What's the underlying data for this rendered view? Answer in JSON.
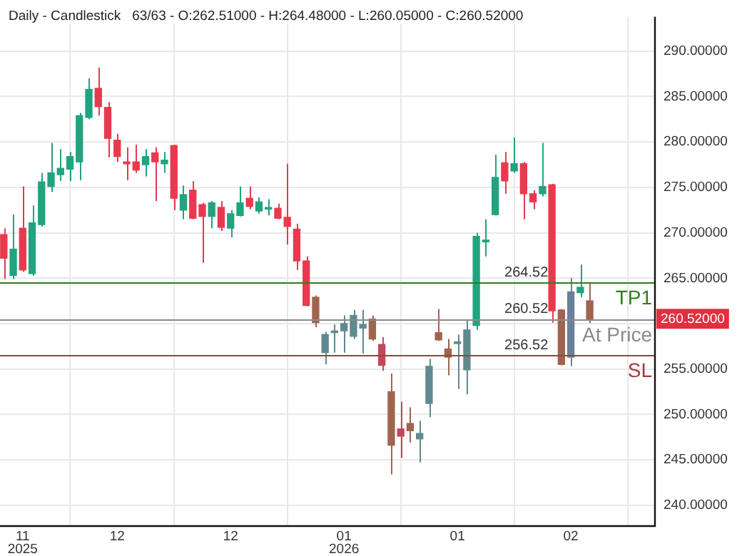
{
  "chart_data": {
    "type": "candlestick",
    "title": "Daily - Candlestick   63/63 - O:262.51000 - H:264.48000 - L:260.05000 - C:260.52000",
    "categories": [
      null,
      null,
      "11 2025",
      null,
      null,
      null,
      null,
      null,
      null,
      null,
      null,
      null,
      "12",
      null,
      null,
      null,
      null,
      null,
      null,
      null,
      null,
      null,
      null,
      null,
      "12",
      null,
      null,
      null,
      null,
      null,
      null,
      null,
      null,
      null,
      null,
      null,
      "01 2026",
      null,
      null,
      null,
      null,
      null,
      null,
      null,
      null,
      null,
      null,
      null,
      "01",
      null,
      null,
      null,
      null,
      null,
      null,
      null,
      null,
      null,
      null,
      null,
      "02",
      null,
      null
    ],
    "ohlc": [
      [
        269.8,
        270.5,
        264.9,
        267.2
      ],
      [
        265.3,
        272.0,
        264.9,
        268.2
      ],
      [
        270.5,
        275.1,
        265.7,
        265.9
      ],
      [
        265.5,
        273.0,
        265.3,
        271.1
      ],
      [
        270.9,
        276.6,
        270.7,
        275.6
      ],
      [
        275.1,
        279.9,
        274.5,
        276.6
      ],
      [
        276.4,
        279.2,
        275.7,
        277.1
      ],
      [
        277.0,
        278.9,
        275.7,
        278.4
      ],
      [
        277.8,
        283.2,
        275.8,
        282.9
      ],
      [
        282.7,
        287.0,
        282.5,
        285.8
      ],
      [
        285.9,
        288.2,
        282.9,
        283.9
      ],
      [
        283.8,
        284.4,
        278.3,
        280.4
      ],
      [
        280.2,
        280.9,
        277.8,
        278.4
      ],
      [
        277.8,
        279.4,
        275.8,
        277.6
      ],
      [
        277.8,
        279.7,
        276.6,
        276.9
      ],
      [
        277.5,
        279.2,
        276.2,
        278.4
      ],
      [
        278.8,
        279.4,
        273.5,
        277.8
      ],
      [
        277.6,
        278.9,
        276.6,
        278.0
      ],
      [
        279.6,
        279.7,
        272.5,
        273.8
      ],
      [
        272.5,
        275.2,
        271.5,
        274.2
      ],
      [
        274.7,
        275.7,
        271.5,
        271.6
      ],
      [
        273.1,
        273.3,
        266.7,
        271.8
      ],
      [
        271.8,
        273.5,
        270.5,
        273.3
      ],
      [
        272.8,
        273.5,
        270.2,
        270.6
      ],
      [
        270.5,
        272.5,
        269.5,
        272.1
      ],
      [
        271.9,
        275.1,
        271.8,
        273.3
      ],
      [
        273.8,
        275.1,
        272.6,
        272.9
      ],
      [
        272.4,
        273.9,
        272.1,
        273.4
      ],
      [
        272.6,
        273.7,
        271.9,
        272.7
      ],
      [
        272.7,
        273.2,
        271.5,
        271.6
      ],
      [
        271.7,
        277.6,
        268.7,
        270.7
      ],
      [
        270.4,
        271.0,
        265.9,
        266.9
      ],
      [
        266.9,
        267.4,
        261.9,
        262.0
      ],
      [
        262.9,
        263.1,
        259.6,
        260.1
      ],
      [
        256.8,
        259.1,
        255.5,
        258.8
      ],
      [
        259.0,
        259.9,
        256.8,
        259.1
      ],
      [
        259.2,
        260.9,
        256.8,
        260.0
      ],
      [
        258.6,
        261.5,
        258.3,
        260.9
      ],
      [
        259.5,
        261.5,
        256.7,
        259.9
      ],
      [
        260.5,
        260.9,
        258.1,
        258.3
      ],
      [
        257.7,
        258.5,
        254.8,
        255.4
      ],
      [
        252.5,
        254.5,
        243.4,
        246.6
      ],
      [
        248.4,
        251.4,
        245.2,
        247.6
      ],
      [
        249.0,
        250.8,
        246.9,
        248.2
      ],
      [
        247.3,
        249.3,
        244.7,
        247.9
      ],
      [
        251.2,
        256.1,
        249.7,
        255.3
      ],
      [
        259.0,
        261.6,
        258.1,
        258.2
      ],
      [
        257.2,
        258.3,
        254.3,
        256.3
      ],
      [
        257.8,
        258.8,
        252.8,
        257.9
      ],
      [
        254.9,
        260.4,
        252.2,
        259.3
      ],
      [
        259.8,
        270.0,
        259.3,
        269.6
      ],
      [
        269.0,
        271.5,
        267.4,
        269.2
      ],
      [
        272.0,
        278.6,
        271.9,
        276.1
      ],
      [
        277.7,
        278.9,
        274.3,
        275.7
      ],
      [
        276.8,
        280.5,
        276.6,
        277.6
      ],
      [
        277.6,
        277.8,
        271.5,
        274.3
      ],
      [
        274.3,
        274.7,
        272.6,
        273.4
      ],
      [
        274.3,
        279.9,
        274.0,
        275.1
      ],
      [
        275.3,
        275.4,
        260.1,
        261.4
      ],
      [
        261.5,
        261.6,
        255.4,
        255.5
      ],
      [
        256.3,
        265.0,
        255.3,
        263.5
      ],
      [
        263.4,
        266.5,
        262.9,
        264.0
      ],
      [
        262.51,
        264.48,
        260.05,
        260.52
      ]
    ],
    "colors": [
      "#e8394f",
      "#22a37f",
      "#e8394f",
      "#22a37f",
      "#22a37f",
      "#22a37f",
      "#22a37f",
      "#22a37f",
      "#22a37f",
      "#22a37f",
      "#e8394f",
      "#e8394f",
      "#e8394f",
      "#e8394f",
      "#e8394f",
      "#22a37f",
      "#e8394f",
      "#22a37f",
      "#e8394f",
      "#22a37f",
      "#e8394f",
      "#e8394f",
      "#22a37f",
      "#e8394f",
      "#22a37f",
      "#22a37f",
      "#e8394f",
      "#22a37f",
      "#22a37f",
      "#e8394f",
      "#e8394f",
      "#e8394f",
      "#e8394f",
      "#a0644e",
      "#5f8a90",
      "#5f8a90",
      "#5f8a90",
      "#5f8a90",
      "#5f8a90",
      "#a0644e",
      "#c0485a",
      "#a0644e",
      "#c0485a",
      "#a0644e",
      "#5f8a90",
      "#5f8a90",
      "#a0644e",
      "#a0644e",
      "#5f8a90",
      "#5f8a90",
      "#22a37f",
      "#22a37f",
      "#22a37f",
      "#e8394f",
      "#22a37f",
      "#e8394f",
      "#e8394f",
      "#22a37f",
      "#e8394f",
      "#a0644e",
      "#6b7f9a",
      "#22a37f",
      "#a0644e"
    ],
    "ylim": [
      237.7,
      293.8
    ],
    "yticks": [
      {
        "value": 240,
        "label": "240.00000"
      },
      {
        "value": 245,
        "label": "245.00000"
      },
      {
        "value": 250,
        "label": "250.00000"
      },
      {
        "value": 255,
        "label": "255.00000"
      },
      {
        "value": 260,
        "label": null
      },
      {
        "value": 265,
        "label": "265.00000"
      },
      {
        "value": 270,
        "label": "270.00000"
      },
      {
        "value": 275,
        "label": "275.00000"
      },
      {
        "value": 280,
        "label": "280.00000"
      },
      {
        "value": 285,
        "label": "285.00000"
      },
      {
        "value": 290,
        "label": "290.00000"
      }
    ],
    "grid": true,
    "legend": false,
    "ref_lines": [
      {
        "axis": "y",
        "value": 264.52,
        "label": "TP1",
        "color": "#2e7d1e"
      },
      {
        "axis": "y",
        "value": 260.52,
        "label": "At Price",
        "color": "#8a8a8a"
      },
      {
        "axis": "y",
        "value": 256.52,
        "label": "SL",
        "color": "#a83a3a"
      }
    ],
    "annotations": [
      {
        "text": "264.52",
        "y": 264.52
      },
      {
        "text": "260.52",
        "y": 260.52
      },
      {
        "text": "256.52",
        "y": 256.52
      },
      "260.52000"
    ]
  }
}
